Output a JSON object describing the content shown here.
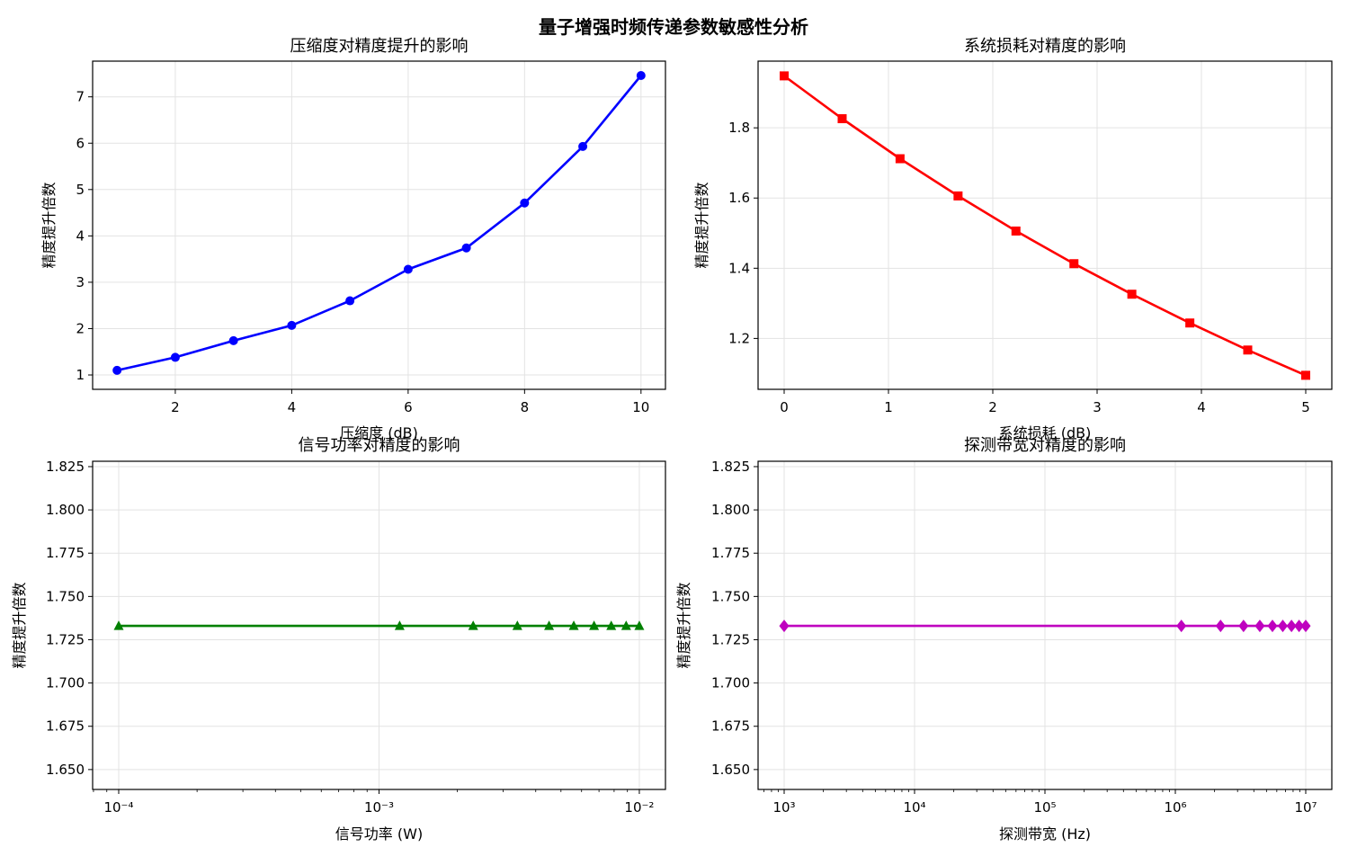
{
  "figure": {
    "suptitle": "量子增强时频传递参数敏感性分析"
  },
  "chart_data": [
    {
      "type": "line",
      "title": "压缩度对精度提升的影响",
      "xlabel": "压缩度 (dB)",
      "ylabel": "精度提升倍数",
      "xscale": "linear",
      "xlim": [
        0.58,
        10.42
      ],
      "ylim": [
        0.69,
        7.77
      ],
      "xticks": [
        2,
        4,
        6,
        8,
        10
      ],
      "xtick_labels": [
        "2",
        "4",
        "6",
        "8",
        "10"
      ],
      "yticks": [
        1,
        2,
        3,
        4,
        5,
        6,
        7
      ],
      "ytick_labels": [
        "1",
        "2",
        "3",
        "4",
        "5",
        "6",
        "7"
      ],
      "grid": true,
      "series": [
        {
          "color": "#0000ff",
          "marker": "circle",
          "x": [
            1,
            2,
            3,
            4,
            5,
            6,
            7,
            8,
            9,
            10
          ],
          "y": [
            1.1,
            1.38,
            1.74,
            2.07,
            2.6,
            3.28,
            3.74,
            4.71,
            5.93,
            7.46
          ]
        }
      ]
    },
    {
      "type": "line",
      "title": "系统损耗对精度的影响",
      "xlabel": "系统损耗 (dB)",
      "ylabel": "精度提升倍数",
      "xscale": "linear",
      "xlim": [
        -0.25,
        5.25
      ],
      "ylim": [
        1.055,
        1.99
      ],
      "xticks": [
        0,
        1,
        2,
        3,
        4,
        5
      ],
      "xtick_labels": [
        "0",
        "1",
        "2",
        "3",
        "4",
        "5"
      ],
      "yticks": [
        1.2,
        1.4,
        1.6,
        1.8
      ],
      "ytick_labels": [
        "1.2",
        "1.4",
        "1.6",
        "1.8"
      ],
      "grid": true,
      "series": [
        {
          "color": "#ff0000",
          "marker": "square",
          "x": [
            0,
            0.556,
            1.111,
            1.667,
            2.222,
            2.778,
            3.333,
            3.889,
            4.444,
            5.0
          ],
          "y": [
            1.948,
            1.826,
            1.712,
            1.606,
            1.506,
            1.413,
            1.326,
            1.244,
            1.167,
            1.095
          ]
        }
      ]
    },
    {
      "type": "line",
      "title": "信号功率对精度的影响",
      "xlabel": "信号功率 (W)",
      "ylabel": "精度提升倍数",
      "xscale": "log",
      "xlim": [
        7.94e-05,
        0.0126
      ],
      "ylim": [
        1.6385,
        1.8281
      ],
      "xticks": [
        0.0001,
        0.001,
        0.01
      ],
      "xtick_labels": [
        "10⁻⁴",
        "10⁻³",
        "10⁻²"
      ],
      "yticks": [
        1.65,
        1.675,
        1.7,
        1.725,
        1.75,
        1.775,
        1.8,
        1.825
      ],
      "ytick_labels": [
        "1.650",
        "1.675",
        "1.700",
        "1.725",
        "1.750",
        "1.775",
        "1.800",
        "1.825"
      ],
      "grid": true,
      "series": [
        {
          "color": "#008000",
          "marker": "triangle",
          "x": [
            0.0001,
            0.0012,
            0.0023,
            0.0034,
            0.0045,
            0.0056,
            0.0067,
            0.0078,
            0.0089,
            0.01
          ],
          "y": [
            1.733,
            1.733,
            1.733,
            1.733,
            1.733,
            1.733,
            1.733,
            1.733,
            1.733,
            1.733
          ]
        }
      ]
    },
    {
      "type": "line",
      "title": "探测带宽对精度的影响",
      "xlabel": "探测带宽 (Hz)",
      "ylabel": "精度提升倍数",
      "xscale": "log",
      "xlim": [
        631,
        15850000
      ],
      "ylim": [
        1.6385,
        1.8281
      ],
      "xticks": [
        1000,
        10000,
        100000,
        1000000,
        10000000
      ],
      "xtick_labels": [
        "10³",
        "10⁴",
        "10⁵",
        "10⁶",
        "10⁷"
      ],
      "yticks": [
        1.65,
        1.675,
        1.7,
        1.725,
        1.75,
        1.775,
        1.8,
        1.825
      ],
      "ytick_labels": [
        "1.650",
        "1.675",
        "1.700",
        "1.725",
        "1.750",
        "1.775",
        "1.800",
        "1.825"
      ],
      "grid": true,
      "series": [
        {
          "color": "#bf00bf",
          "marker": "diamond",
          "x": [
            1000,
            1112000,
            2223000,
            3334000,
            4445000,
            5556000,
            6667000,
            7778000,
            8889000,
            10000000
          ],
          "y": [
            1.733,
            1.733,
            1.733,
            1.733,
            1.733,
            1.733,
            1.733,
            1.733,
            1.733,
            1.733
          ]
        }
      ]
    }
  ]
}
